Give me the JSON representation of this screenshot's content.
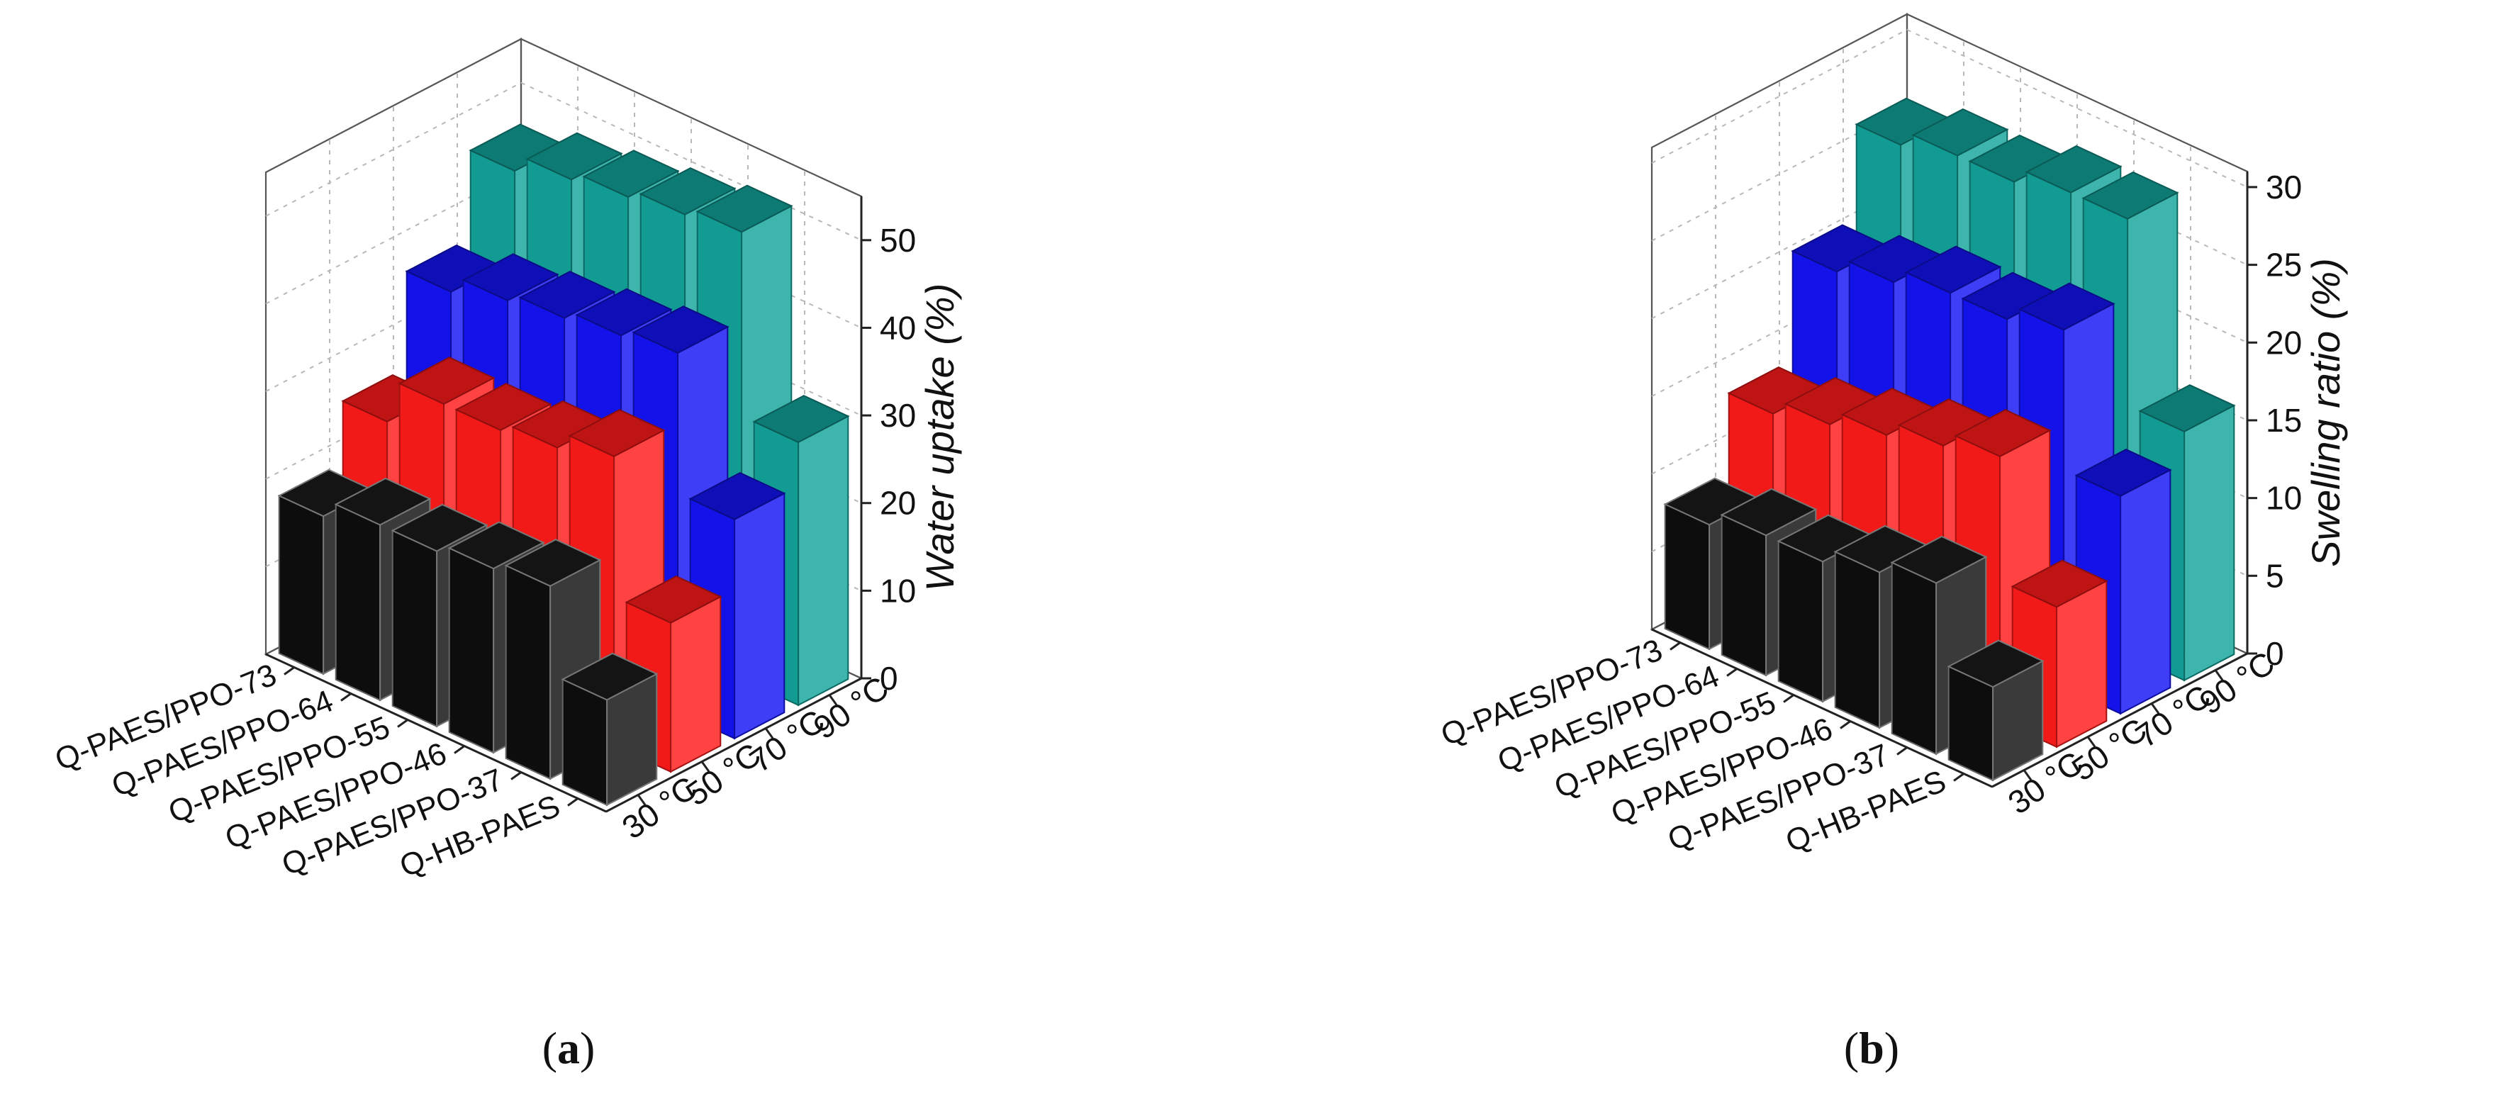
{
  "figure": {
    "panels": [
      {
        "label_letter": "a",
        "label_text": "(a)"
      },
      {
        "label_letter": "b",
        "label_text": "(b)"
      }
    ]
  },
  "chart_data": [
    {
      "type": "bar",
      "subtype": "3d-bar",
      "title": "",
      "zlabel": "Water uptake (%)",
      "z_ticks": [
        0,
        10,
        20,
        30,
        40,
        50
      ],
      "zlim": [
        0,
        55
      ],
      "samples": [
        "Q-PAES/PPO-73",
        "Q-PAES/PPO-64",
        "Q-PAES/PPO-55",
        "Q-PAES/PPO-46",
        "Q-PAES/PPO-37",
        "Q-HB-PAES"
      ],
      "temperatures": [
        "30 °C",
        "50 °C",
        "70 °C",
        "90 °C"
      ],
      "series": [
        {
          "name": "30 °C",
          "color": "#1a1a1a",
          "values": [
            18,
            20,
            20,
            21,
            22,
            12
          ]
        },
        {
          "name": "50 °C",
          "color": "#ff1a1a",
          "values": [
            25,
            30,
            30,
            31,
            33,
            17
          ]
        },
        {
          "name": "70 °C",
          "color": "#1414f5",
          "values": [
            36,
            38,
            39,
            40,
            41,
            25
          ]
        },
        {
          "name": "90 °C",
          "color": "#13a39a",
          "values": [
            46,
            48,
            49,
            50,
            51,
            30
          ]
        }
      ]
    },
    {
      "type": "bar",
      "subtype": "3d-bar",
      "title": "",
      "zlabel": "Swelling ratio (%)",
      "z_ticks": [
        0,
        5,
        10,
        15,
        20,
        25,
        30
      ],
      "zlim": [
        0,
        31
      ],
      "samples": [
        "Q-PAES/PPO-73",
        "Q-PAES/PPO-64",
        "Q-PAES/PPO-55",
        "Q-PAES/PPO-46",
        "Q-PAES/PPO-37",
        "Q-HB-PAES"
      ],
      "temperatures": [
        "30 °C",
        "50 °C",
        "70 °C",
        "90 °C"
      ],
      "series": [
        {
          "name": "30 °C",
          "color": "#1a1a1a",
          "values": [
            8,
            9,
            9,
            10,
            11,
            6
          ]
        },
        {
          "name": "50 °C",
          "color": "#ff1a1a",
          "values": [
            13,
            14,
            15,
            16,
            17,
            9
          ]
        },
        {
          "name": "70 °C",
          "color": "#1414f5",
          "values": [
            20,
            21,
            22,
            22,
            23,
            14
          ]
        },
        {
          "name": "90 °C",
          "color": "#13a39a",
          "values": [
            26,
            27,
            27,
            28,
            28,
            16
          ]
        }
      ]
    }
  ]
}
